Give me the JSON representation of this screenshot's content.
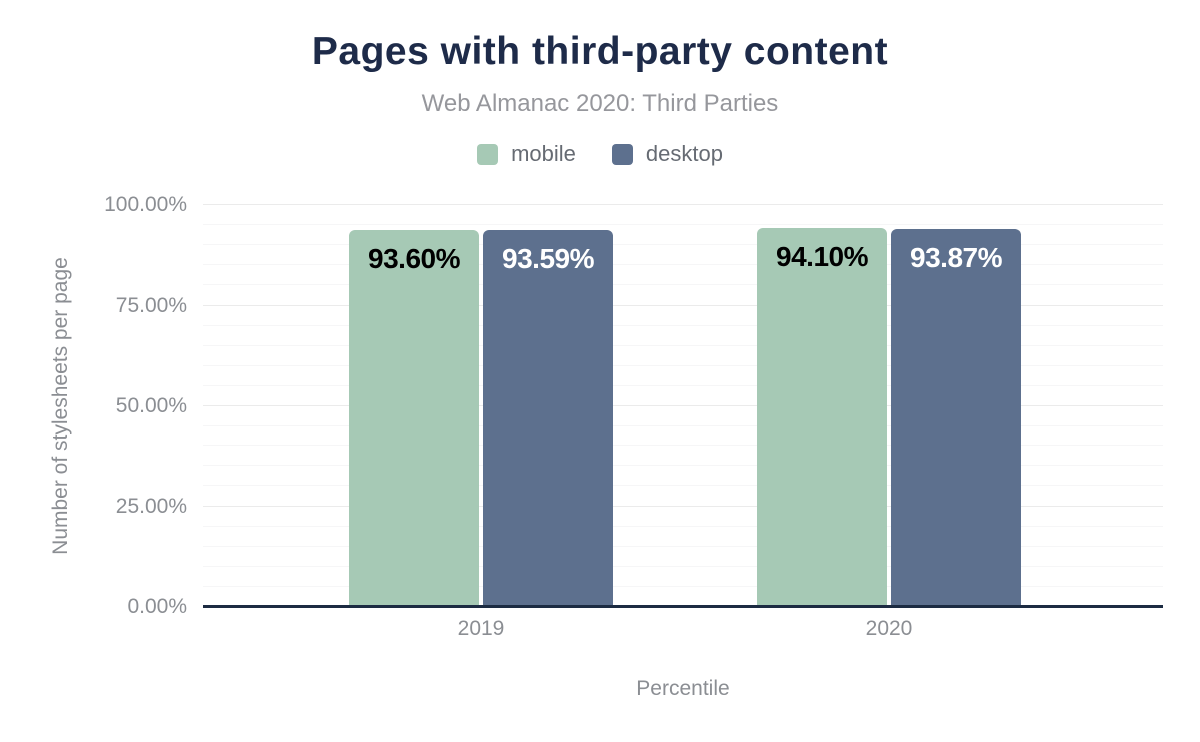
{
  "header": {
    "title": "Pages with third-party content",
    "subtitle": "Web Almanac 2020: Third Parties"
  },
  "legend": {
    "items": [
      {
        "label": "mobile",
        "color": "#a6c9b5"
      },
      {
        "label": "desktop",
        "color": "#5d708e"
      }
    ]
  },
  "chart_data": {
    "type": "bar",
    "title": "Pages with third-party content",
    "subtitle": "Web Almanac 2020: Third Parties",
    "categories": [
      "2019",
      "2020"
    ],
    "series": [
      {
        "name": "mobile",
        "color": "#a6c9b5",
        "label_color": "#000000",
        "values": [
          93.6,
          94.1
        ],
        "labels": [
          "93.60%",
          "94.10%"
        ]
      },
      {
        "name": "desktop",
        "color": "#5d708e",
        "label_color": "#ffffff",
        "values": [
          93.59,
          93.87
        ],
        "labels": [
          "93.59%",
          "93.87%"
        ]
      }
    ],
    "xlabel": "Percentile",
    "ylabel": "Number of stylesheets per page",
    "ylim": [
      0,
      100
    ],
    "yticks": [
      {
        "value": 0,
        "label": "0.00%"
      },
      {
        "value": 25,
        "label": "25.00%"
      },
      {
        "value": 50,
        "label": "50.00%"
      },
      {
        "value": 75,
        "label": "75.00%"
      },
      {
        "value": 100,
        "label": "100.00%"
      }
    ],
    "grid": {
      "minor_interval": 5,
      "major_interval": 25,
      "grid_on": true
    },
    "legend_position": "top",
    "colors": {
      "title": "#1e2b49",
      "subtitle": "#96979c",
      "axis_text": "#8b8e93",
      "axis_line": "#1c2b42",
      "grid_major": "#ebebeb",
      "grid_minor": "#f6f6f7"
    }
  }
}
